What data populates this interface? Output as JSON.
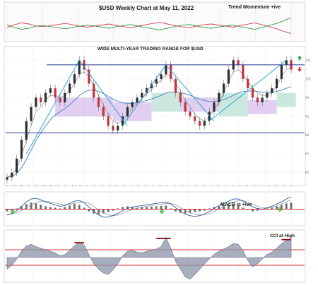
{
  "chart_data": [
    {
      "type": "line",
      "panel": "trend-momentum",
      "title": "$USD Weekly Chart at May 11, 2022",
      "annotation": "Trend Momentum +ive",
      "series": [
        {
          "color": "#d6404a",
          "values": [
            0.45,
            0.55,
            0.62,
            0.58,
            0.5,
            0.48,
            0.52,
            0.56,
            0.6,
            0.55,
            0.5,
            0.46,
            0.5,
            0.54,
            0.58,
            0.52,
            0.48,
            0.44,
            0.5,
            0.55,
            0.6,
            0.64,
            0.58,
            0.52,
            0.47,
            0.44,
            0.5,
            0.55,
            0.58,
            0.54,
            0.5,
            0.46,
            0.52,
            0.57,
            0.62,
            0.55,
            0.48,
            0.4,
            0.3,
            0.22
          ]
        },
        {
          "color": "#3a9a4a",
          "values": [
            0.55,
            0.45,
            0.38,
            0.42,
            0.5,
            0.52,
            0.48,
            0.44,
            0.4,
            0.45,
            0.5,
            0.54,
            0.5,
            0.46,
            0.42,
            0.48,
            0.52,
            0.56,
            0.5,
            0.45,
            0.4,
            0.36,
            0.42,
            0.48,
            0.53,
            0.56,
            0.5,
            0.45,
            0.42,
            0.46,
            0.5,
            0.54,
            0.48,
            0.43,
            0.38,
            0.45,
            0.52,
            0.6,
            0.7,
            0.82
          ]
        }
      ]
    },
    {
      "type": "line",
      "panel": "price",
      "subtitle": "WIDE MULTI-YEAR TRADING RANGE FOR $USD",
      "range_upper": 103,
      "range_lower": 88.5,
      "ylim": [
        78,
        106
      ],
      "x_count": 60,
      "price": [
        79,
        80,
        83,
        87,
        91,
        94,
        96,
        95,
        97,
        98,
        96,
        95,
        97,
        99,
        101,
        104,
        102,
        99,
        96,
        94,
        92,
        90,
        89,
        90,
        92,
        94,
        95,
        96,
        97,
        98,
        99,
        100,
        101,
        103,
        100,
        97,
        95,
        93,
        92,
        91,
        90,
        91,
        93,
        95,
        97,
        99,
        102,
        104,
        103,
        100,
        98,
        96,
        95,
        96,
        97,
        98,
        100,
        103,
        104,
        102
      ],
      "ema_fast": [
        79,
        79.5,
        81,
        83.5,
        87,
        90,
        93,
        94,
        95.5,
        96.5,
        96.5,
        96,
        96.5,
        97.5,
        99,
        101,
        101.5,
        100.5,
        98.5,
        96.5,
        94.5,
        92.5,
        91,
        90.5,
        91,
        92.5,
        93.8,
        94.8,
        95.8,
        96.8,
        97.8,
        98.8,
        99.8,
        101,
        100.5,
        99,
        97.5,
        95.5,
        94,
        92.5,
        91.5,
        91,
        92,
        93.5,
        95,
        97,
        99.5,
        101.5,
        102,
        101,
        99.5,
        98,
        97,
        96.5,
        96.5,
        97,
        98.5,
        100.5,
        102,
        102.5
      ],
      "ema_slow": [
        79,
        79.2,
        79.8,
        81,
        82.8,
        84.8,
        86.8,
        88.5,
        90,
        91.3,
        92.3,
        93,
        93.7,
        94.5,
        95.4,
        96.4,
        97.2,
        97.6,
        97.6,
        97.3,
        96.9,
        96.3,
        95.7,
        95.2,
        94.9,
        94.8,
        94.8,
        94.9,
        95.1,
        95.4,
        95.7,
        96.1,
        96.5,
        97,
        97.2,
        97.2,
        97.1,
        96.8,
        96.5,
        96.1,
        95.7,
        95.4,
        95.2,
        95.2,
        95.3,
        95.6,
        96,
        96.5,
        97,
        97.3,
        97.4,
        97.4,
        97.3,
        97.2,
        97.1,
        97.1,
        97.3,
        97.6,
        98,
        98.3
      ],
      "cloud_purple": [
        [
          10,
          22,
          96,
          92
        ],
        [
          22,
          30,
          95,
          91
        ],
        [
          36,
          44,
          96,
          93
        ],
        [
          50,
          56,
          95.5,
          92.5
        ]
      ],
      "cloud_green": [
        [
          30,
          36,
          97,
          93
        ],
        [
          44,
          50,
          97,
          92
        ],
        [
          56,
          60,
          97,
          94
        ]
      ],
      "trend_lines": [
        [
          4,
          84,
          15,
          104
        ],
        [
          15,
          104,
          25,
          90
        ],
        [
          24,
          90,
          33,
          103
        ],
        [
          33,
          103,
          43,
          91
        ],
        [
          42,
          91,
          58,
          104
        ]
      ],
      "buy_signal_color": "#2a9d3a",
      "sell_signal_color": "#d6303a"
    },
    {
      "type": "bar",
      "panel": "macd",
      "annotation": "MACD is +ive",
      "histogram": [
        -0.3,
        -0.2,
        0.1,
        0.4,
        0.7,
        0.9,
        0.8,
        0.6,
        0.4,
        0.3,
        0.2,
        0.1,
        0.3,
        0.5,
        0.7,
        0.6,
        0.2,
        -0.3,
        -0.6,
        -0.7,
        -0.6,
        -0.4,
        -0.2,
        0.1,
        0.3,
        0.4,
        0.3,
        0.2,
        0.25,
        0.3,
        0.35,
        0.4,
        0.45,
        0.5,
        0.1,
        -0.3,
        -0.5,
        -0.6,
        -0.5,
        -0.4,
        -0.3,
        -0.2,
        0.1,
        0.3,
        0.4,
        0.5,
        0.6,
        0.7,
        0.5,
        0.2,
        -0.1,
        -0.3,
        -0.2,
        -0.1,
        0.1,
        0.2,
        0.4,
        0.6,
        0.8,
        0.9
      ],
      "macd_line": [
        -0.8,
        -0.6,
        -0.2,
        0.4,
        1.0,
        1.4,
        1.5,
        1.3,
        1.0,
        0.8,
        0.6,
        0.4,
        0.5,
        0.8,
        1.1,
        1.2,
        0.9,
        0.3,
        -0.3,
        -0.8,
        -1.1,
        -1.1,
        -0.9,
        -0.6,
        -0.2,
        0.1,
        0.3,
        0.4,
        0.5,
        0.6,
        0.7,
        0.8,
        0.9,
        1.0,
        0.7,
        0.2,
        -0.3,
        -0.7,
        -0.9,
        -1.0,
        -0.9,
        -0.7,
        -0.3,
        0.1,
        0.5,
        0.8,
        1.1,
        1.4,
        1.4,
        1.1,
        0.7,
        0.3,
        0.1,
        0.0,
        0.2,
        0.4,
        0.7,
        1.0,
        1.4,
        1.7
      ],
      "signal_line": [
        -0.7,
        -0.65,
        -0.5,
        -0.2,
        0.2,
        0.6,
        0.9,
        1.1,
        1.1,
        1.0,
        0.9,
        0.7,
        0.6,
        0.65,
        0.8,
        0.95,
        1.0,
        0.8,
        0.4,
        -0.1,
        -0.5,
        -0.8,
        -0.9,
        -0.8,
        -0.6,
        -0.3,
        -0.05,
        0.15,
        0.3,
        0.4,
        0.5,
        0.6,
        0.7,
        0.8,
        0.8,
        0.6,
        0.2,
        -0.2,
        -0.5,
        -0.7,
        -0.8,
        -0.8,
        -0.6,
        -0.3,
        0.0,
        0.4,
        0.7,
        1.0,
        1.2,
        1.2,
        1.0,
        0.7,
        0.4,
        0.2,
        0.15,
        0.25,
        0.45,
        0.7,
        1.0,
        1.3
      ],
      "ylim": [
        -2,
        2
      ]
    },
    {
      "type": "area",
      "panel": "cci",
      "annotation": "CCI  at High",
      "values": [
        -150,
        -100,
        -20,
        80,
        150,
        170,
        140,
        120,
        100,
        80,
        60,
        20,
        40,
        90,
        150,
        200,
        160,
        40,
        -80,
        -150,
        -200,
        -220,
        -160,
        -80,
        20,
        80,
        90,
        70,
        60,
        80,
        90,
        110,
        140,
        260,
        120,
        -50,
        -150,
        -250,
        -280,
        -220,
        -150,
        -80,
        -20,
        40,
        80,
        110,
        140,
        180,
        170,
        90,
        -40,
        -120,
        -80,
        -20,
        40,
        70,
        120,
        180,
        220,
        240
      ],
      "ylim": [
        -300,
        300
      ],
      "highs": [
        [
          14,
          16,
          190
        ],
        [
          31,
          34,
          245
        ],
        [
          57,
          59,
          230
        ]
      ]
    }
  ]
}
